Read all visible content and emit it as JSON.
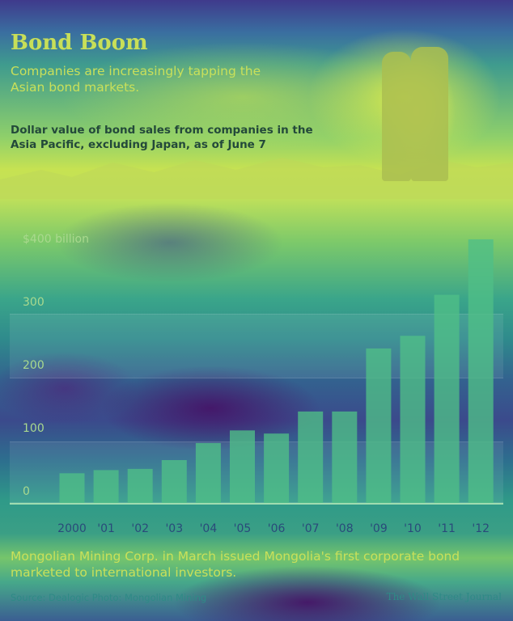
{
  "header": {
    "title": "Bond Boom",
    "subtitle": "Companies are increasingly tapping the Asian bond markets.",
    "description": "Dollar value of bond sales from companies in the Asia Pacific, excluding Japan, as of June 7"
  },
  "footer": {
    "caption": "Mongolian Mining Corp. in March issued Mongolia's first corporate bond marketed to international investors.",
    "source": "Source: Dealogic   Photo: Mongolian Mining",
    "publisher": "The Wall Street Journal"
  },
  "colors": {
    "bar": "#4fbf86",
    "axis_line": "#9fdcb0",
    "tick_text": "#a9d98e",
    "category_text": "#2a4a7a"
  },
  "chart_data": {
    "type": "bar",
    "title": "",
    "xlabel": "",
    "ylabel": "",
    "categories": [
      "2000",
      "'01",
      "'02",
      "'03",
      "'04",
      "'05",
      "'06",
      "'07",
      "'08",
      "'09",
      "'10",
      "'11",
      "'12"
    ],
    "values": [
      47,
      52,
      54,
      68,
      95,
      115,
      110,
      145,
      145,
      245,
      265,
      330,
      418
    ],
    "ylim": [
      0,
      400
    ],
    "yticks": [
      0,
      100,
      200,
      300,
      400
    ],
    "ytick_labels": [
      "0",
      "100",
      "200",
      "300",
      "$400 billion"
    ],
    "grid": false,
    "legend": "none"
  }
}
